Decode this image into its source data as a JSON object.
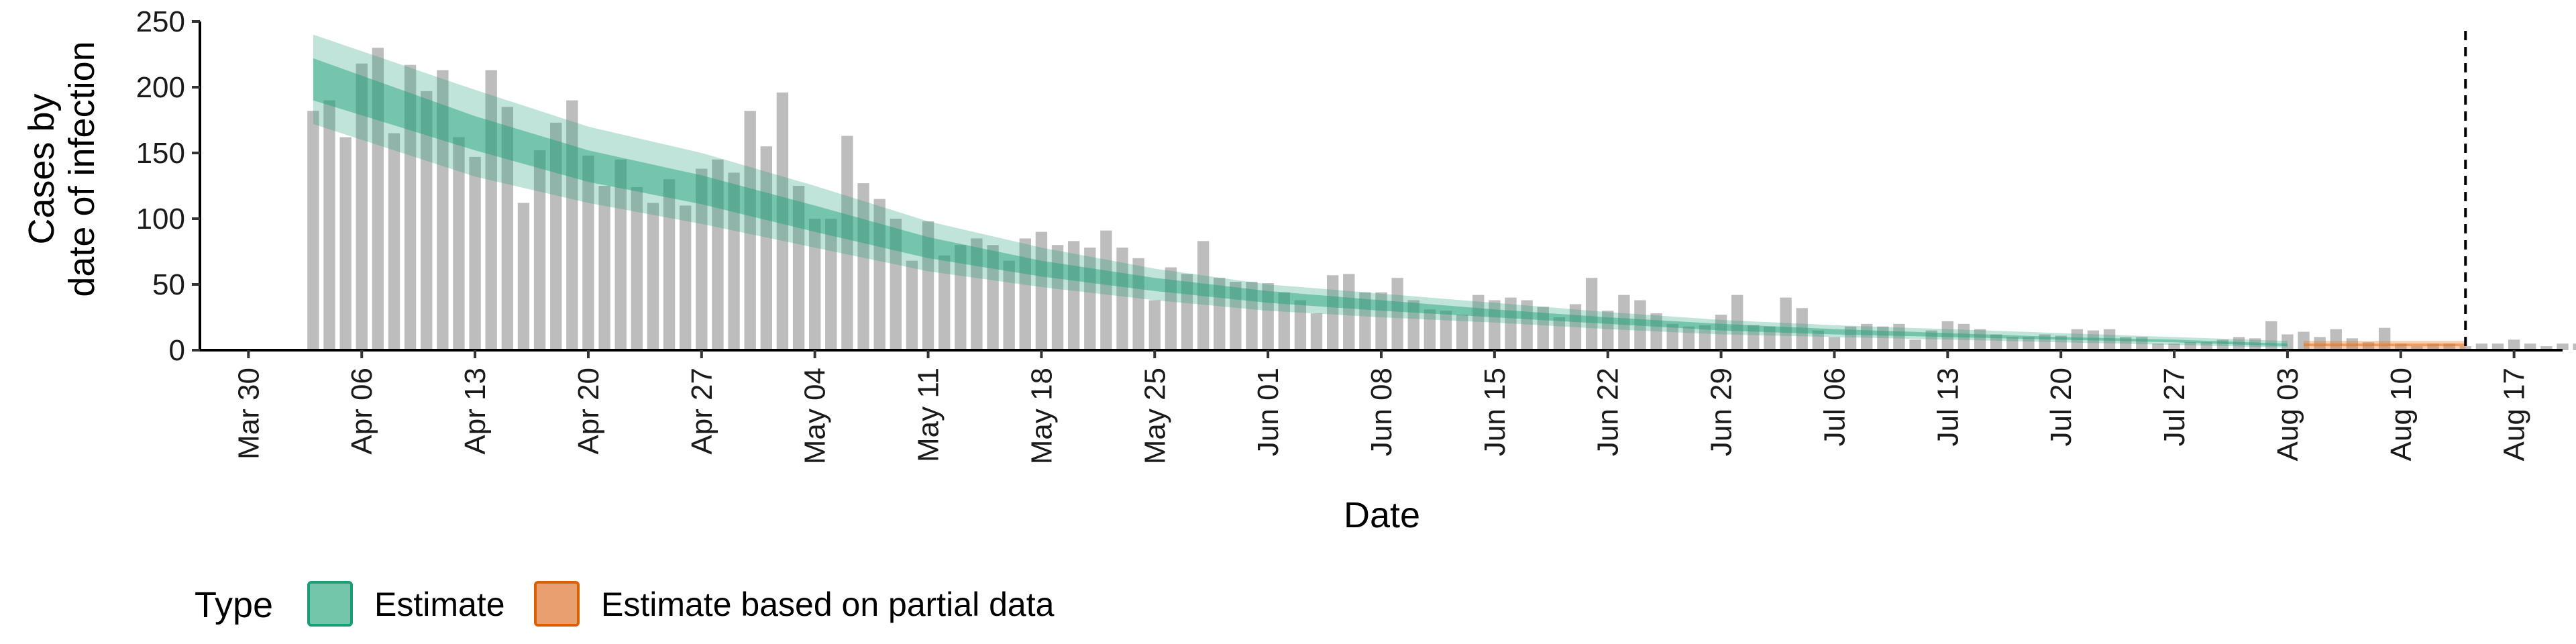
{
  "chart_data": {
    "type": "bar",
    "xlabel": "Date",
    "ylabel_lines": [
      "Cases by",
      "date of infection"
    ],
    "ylim": [
      0,
      250
    ],
    "y_ticks": [
      0,
      50,
      100,
      150,
      200,
      250
    ],
    "y_tick_labels": [
      "0",
      "50",
      "100",
      "150",
      "200",
      "250"
    ],
    "x_ticks": [
      {
        "date": "2020-03-30",
        "label": "Mar 30"
      },
      {
        "date": "2020-04-06",
        "label": "Apr 06"
      },
      {
        "date": "2020-04-13",
        "label": "Apr 13"
      },
      {
        "date": "2020-04-20",
        "label": "Apr 20"
      },
      {
        "date": "2020-04-27",
        "label": "Apr 27"
      },
      {
        "date": "2020-05-04",
        "label": "May 04"
      },
      {
        "date": "2020-05-11",
        "label": "May 11"
      },
      {
        "date": "2020-05-18",
        "label": "May 18"
      },
      {
        "date": "2020-05-25",
        "label": "May 25"
      },
      {
        "date": "2020-06-01",
        "label": "Jun 01"
      },
      {
        "date": "2020-06-08",
        "label": "Jun 08"
      },
      {
        "date": "2020-06-15",
        "label": "Jun 15"
      },
      {
        "date": "2020-06-22",
        "label": "Jun 22"
      },
      {
        "date": "2020-06-29",
        "label": "Jun 29"
      },
      {
        "date": "2020-07-06",
        "label": "Jul 06"
      },
      {
        "date": "2020-07-13",
        "label": "Jul 13"
      },
      {
        "date": "2020-07-20",
        "label": "Jul 20"
      },
      {
        "date": "2020-07-27",
        "label": "Jul 27"
      },
      {
        "date": "2020-08-03",
        "label": "Aug 03"
      },
      {
        "date": "2020-08-10",
        "label": "Aug 10"
      },
      {
        "date": "2020-08-17",
        "label": "Aug 17"
      }
    ],
    "x_range": [
      "2020-03-27",
      "2020-08-20"
    ],
    "bars": {
      "start_date": "2020-04-03",
      "values": [
        182,
        190,
        162,
        218,
        230,
        165,
        217,
        197,
        213,
        162,
        147,
        213,
        185,
        112,
        152,
        173,
        190,
        148,
        125,
        145,
        124,
        112,
        130,
        110,
        138,
        145,
        135,
        182,
        155,
        196,
        125,
        100,
        100,
        163,
        127,
        115,
        100,
        68,
        98,
        72,
        80,
        85,
        80,
        68,
        85,
        90,
        80,
        83,
        78,
        91,
        78,
        70,
        38,
        63,
        58,
        83,
        55,
        52,
        52,
        51,
        44,
        38,
        28,
        57,
        58,
        44,
        44,
        55,
        38,
        31,
        30,
        27,
        42,
        38,
        40,
        38,
        33,
        25,
        35,
        55,
        30,
        42,
        38,
        28,
        20,
        18,
        19,
        27,
        42,
        19,
        18,
        40,
        32,
        15,
        10,
        18,
        20,
        18,
        20,
        8,
        15,
        22,
        20,
        16,
        12,
        10,
        10,
        12,
        11,
        16,
        15,
        16,
        10,
        10,
        5,
        5,
        6,
        6,
        8,
        10,
        9,
        22,
        12,
        14,
        10,
        16,
        9,
        6,
        17,
        5,
        3,
        5,
        5,
        3,
        5,
        5,
        8,
        5,
        3,
        5,
        5,
        5,
        5,
        5,
        5
      ],
      "color": "#bdbdbd"
    },
    "estimate": {
      "start_date": "2020-04-03",
      "end_date": "2020-08-03",
      "anchors": [
        {
          "date": "2020-04-03",
          "median": 205,
          "low50": 190,
          "high50": 222,
          "low90": 172,
          "high90": 240
        },
        {
          "date": "2020-04-13",
          "median": 165,
          "low50": 152,
          "high50": 178,
          "low90": 132,
          "high90": 198
        },
        {
          "date": "2020-04-20",
          "median": 140,
          "low50": 128,
          "high50": 152,
          "low90": 112,
          "high90": 170
        },
        {
          "date": "2020-04-27",
          "median": 122,
          "low50": 111,
          "high50": 133,
          "low90": 96,
          "high90": 150
        },
        {
          "date": "2020-05-04",
          "median": 100,
          "low50": 90,
          "high50": 110,
          "low90": 78,
          "high90": 125
        },
        {
          "date": "2020-05-11",
          "median": 78,
          "low50": 70,
          "high50": 86,
          "low90": 60,
          "high90": 98
        },
        {
          "date": "2020-05-18",
          "median": 62,
          "low50": 56,
          "high50": 68,
          "low90": 48,
          "high90": 78
        },
        {
          "date": "2020-05-25",
          "median": 50,
          "low50": 45,
          "high50": 55,
          "low90": 38,
          "high90": 62
        },
        {
          "date": "2020-06-01",
          "median": 40,
          "low50": 36,
          "high50": 45,
          "low90": 30,
          "high90": 50
        },
        {
          "date": "2020-06-08",
          "median": 34,
          "low50": 30,
          "high50": 38,
          "low90": 25,
          "high90": 43
        },
        {
          "date": "2020-06-15",
          "median": 28,
          "low50": 25,
          "high50": 31,
          "low90": 21,
          "high90": 36
        },
        {
          "date": "2020-06-22",
          "median": 22,
          "low50": 20,
          "high50": 25,
          "low90": 16,
          "high90": 29
        },
        {
          "date": "2020-06-29",
          "median": 17,
          "low50": 15,
          "high50": 20,
          "low90": 12,
          "high90": 23
        },
        {
          "date": "2020-07-06",
          "median": 14,
          "low50": 12,
          "high50": 16,
          "low90": 10,
          "high90": 19
        },
        {
          "date": "2020-07-13",
          "median": 12,
          "low50": 10,
          "high50": 13,
          "low90": 8,
          "high90": 16
        },
        {
          "date": "2020-07-20",
          "median": 9,
          "low50": 8,
          "high50": 10,
          "low90": 6,
          "high90": 13
        },
        {
          "date": "2020-07-27",
          "median": 7,
          "low50": 6,
          "high50": 8,
          "low90": 4,
          "high90": 10
        },
        {
          "date": "2020-08-03",
          "median": 4,
          "low50": 3,
          "high50": 5,
          "low90": 2,
          "high90": 7
        }
      ],
      "color": "#1b9e77"
    },
    "partial": {
      "start_date": "2020-08-04",
      "end_date": "2020-08-14",
      "median": 4,
      "low50": 3,
      "high50": 5,
      "low90": 1,
      "high90": 7,
      "color": "#e6731f"
    },
    "vline_date": "2020-08-14",
    "legend": {
      "title": "Type",
      "position": "bottom-left",
      "items": [
        {
          "label": "Estimate",
          "fill": "#73c6a9",
          "border": "#1b9e77"
        },
        {
          "label": "Estimate based on partial data",
          "fill": "#e9a070",
          "border": "#d95f02"
        }
      ]
    },
    "grid": false
  }
}
